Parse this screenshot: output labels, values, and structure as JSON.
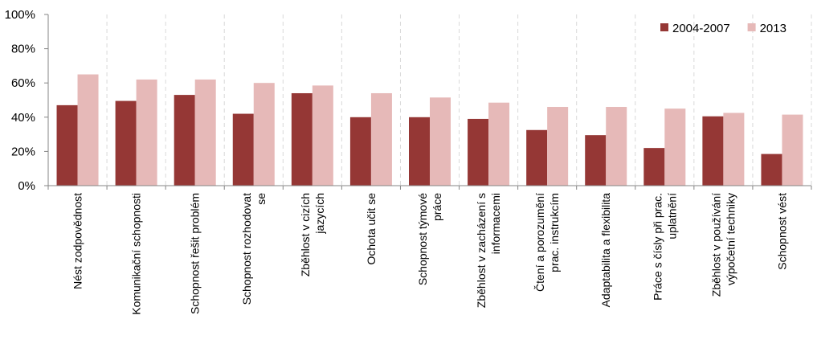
{
  "chart_data": {
    "type": "bar",
    "categories": [
      [
        "Nést zodpovědnost"
      ],
      [
        "Komunikační schopnosti"
      ],
      [
        "Schopnost řešit problém"
      ],
      [
        "Schopnost rozhodovat",
        "se"
      ],
      [
        "Zběhlost v cizích",
        "jazycích"
      ],
      [
        "Ochota učit se"
      ],
      [
        "Schopnost týmové",
        "práce"
      ],
      [
        "Zběhlost v zacházení s",
        "informacemi"
      ],
      [
        "Čtení a porozumění",
        "prac. instrukcím"
      ],
      [
        "Adaptabilita a flexibilita"
      ],
      [
        "Práce s čísly při prac.",
        "uplatnění"
      ],
      [
        "Zběhlost v používání",
        "výpočetní techniky"
      ],
      [
        "Schopnost vést"
      ]
    ],
    "series": [
      {
        "name": "2004-2007",
        "color": "#953735",
        "values": [
          47,
          49.5,
          53,
          42,
          54,
          40,
          40,
          39,
          32.5,
          29.5,
          22,
          40.5,
          18.5
        ]
      },
      {
        "name": "2013",
        "color": "#E6B9B8",
        "values": [
          65,
          62,
          62,
          60,
          58.5,
          54,
          51.5,
          48.5,
          46,
          46,
          45,
          42.5,
          41.5
        ]
      }
    ],
    "title": "",
    "xlabel": "",
    "ylabel": "",
    "ylim": [
      0,
      100
    ],
    "yticks": [
      0,
      20,
      40,
      60,
      80,
      100
    ],
    "ytick_format": "percent",
    "legend_position": "top-right",
    "grid": "vertical-dashed-category-separators"
  }
}
